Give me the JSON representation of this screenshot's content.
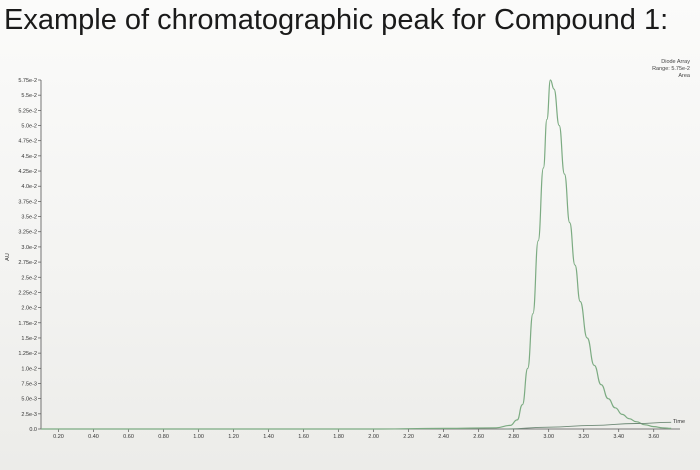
{
  "title": "Example of chromatographic peak for Compound 1:",
  "detector_info": {
    "line1": "Diode Array",
    "line2": "Range: 5.75e-2",
    "line3": "Area"
  },
  "chart_data": {
    "type": "line",
    "title": "Example of chromatographic peak for Compound 1:",
    "xlabel": "Time",
    "ylabel": "AU",
    "xlim": [
      0.1,
      3.75
    ],
    "ylim": [
      0.0,
      0.0575
    ],
    "grid": false,
    "x_ticks": [
      0.2,
      0.4,
      0.6,
      0.8,
      1.0,
      1.2,
      1.4,
      1.6,
      1.8,
      2.0,
      2.2,
      2.4,
      2.6,
      2.8,
      3.0,
      3.2,
      3.4,
      3.6
    ],
    "x_tick_labels": [
      "0.20",
      "0.40",
      "0.60",
      "0.80",
      "1.00",
      "1.20",
      "1.40",
      "1.60",
      "1.80",
      "2.00",
      "2.20",
      "2.40",
      "2.60",
      "2.80",
      "3.00",
      "3.20",
      "3.40",
      "3.60"
    ],
    "y_ticks": [
      0.0575,
      0.055,
      0.0525,
      0.05,
      0.0475,
      0.045,
      0.0425,
      0.04,
      0.0375,
      0.035,
      0.0325,
      0.03,
      0.0275,
      0.025,
      0.0225,
      0.02,
      0.0175,
      0.015,
      0.0125,
      0.01,
      0.0075,
      0.005,
      0.0025,
      0.0
    ],
    "y_tick_labels": [
      "5.75e-2",
      "5.5e-2",
      "5.25e-2",
      "5.0e-2",
      "4.75e-2",
      "4.5e-2",
      "4.25e-2",
      "4.0e-2",
      "3.75e-2",
      "3.5e-2",
      "3.25e-2",
      "3.0e-2",
      "2.75e-2",
      "2.5e-2",
      "2.25e-2",
      "2.0e-2",
      "1.75e-2",
      "1.5e-2",
      "1.25e-2",
      "1.0e-2",
      "7.5e-3",
      "5.0e-3",
      "2.5e-3",
      "0.0"
    ],
    "series": [
      {
        "color": "#7cab82",
        "x": [
          0.1,
          1.0,
          2.0,
          2.4,
          2.7,
          2.78,
          2.82,
          2.85,
          2.88,
          2.91,
          2.94,
          2.97,
          2.99,
          3.01,
          3.03,
          3.06,
          3.09,
          3.12,
          3.15,
          3.18,
          3.22,
          3.26,
          3.3,
          3.34,
          3.38,
          3.42,
          3.46,
          3.5,
          3.55,
          3.6,
          3.65,
          3.7
        ],
        "y": [
          0.0,
          0.0,
          0.0,
          0.0001,
          0.0002,
          0.0006,
          0.0015,
          0.004,
          0.01,
          0.019,
          0.031,
          0.043,
          0.051,
          0.0575,
          0.056,
          0.05,
          0.042,
          0.034,
          0.027,
          0.021,
          0.015,
          0.0105,
          0.0073,
          0.005,
          0.0035,
          0.0024,
          0.0017,
          0.0012,
          0.0007,
          0.0004,
          0.0002,
          0.0001
        ]
      },
      {
        "color": "#6f8a77",
        "x": [
          2.75,
          3.0,
          3.25,
          3.5,
          3.7
        ],
        "y": [
          0.0,
          0.0003,
          0.0006,
          0.0009,
          0.0011
        ]
      }
    ]
  }
}
